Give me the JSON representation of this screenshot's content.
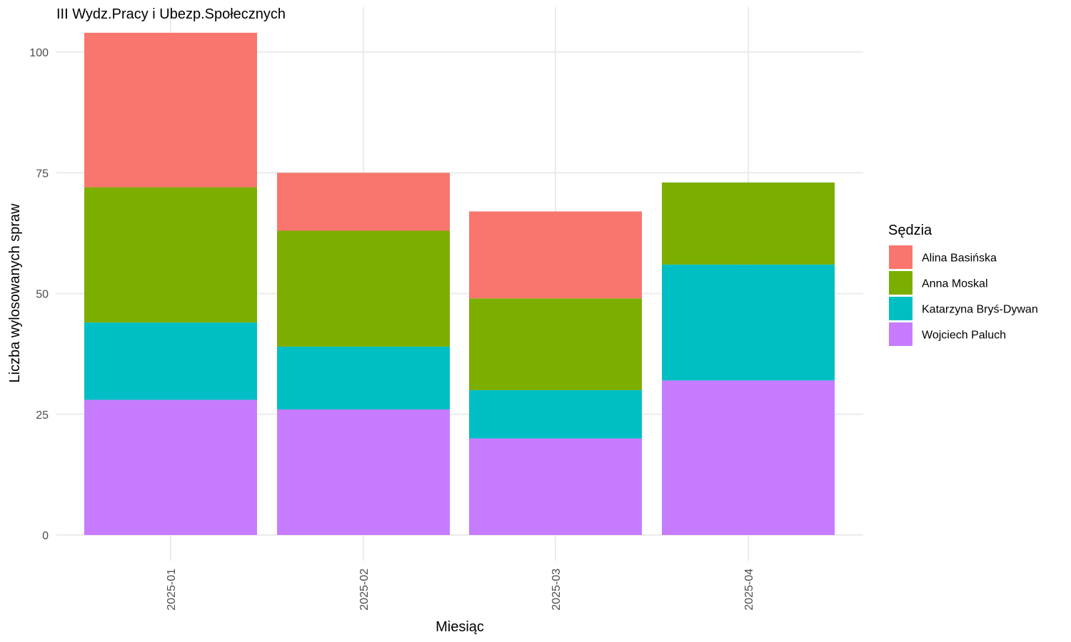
{
  "chart_data": {
    "type": "bar",
    "stacked": true,
    "title": "III Wydz.Pracy i Ubezp.Społecznych",
    "xlabel": "Miesiąc",
    "ylabel": "Liczba wylosowanych spraw",
    "categories": [
      "2025-01",
      "2025-02",
      "2025-03",
      "2025-04"
    ],
    "ylim": [
      0,
      104
    ],
    "yticks": [
      0,
      25,
      50,
      75,
      100
    ],
    "grid": true,
    "legend": {
      "title": "Sędzia",
      "position": "right"
    },
    "series": [
      {
        "name": "Alina Basińska",
        "color": "#F8766D",
        "values": [
          32,
          12,
          18,
          0
        ]
      },
      {
        "name": "Anna Moskal",
        "color": "#7CAE00",
        "values": [
          28,
          24,
          19,
          17
        ]
      },
      {
        "name": "Katarzyna Bryś-Dywan",
        "color": "#00BFC4",
        "values": [
          16,
          13,
          10,
          24
        ]
      },
      {
        "name": "Wojciech Paluch",
        "color": "#C77CFF",
        "values": [
          28,
          26,
          20,
          32
        ]
      }
    ],
    "stack_order_bottom_to_top": [
      "Wojciech Paluch",
      "Katarzyna Bryś-Dywan",
      "Anna Moskal",
      "Alina Basińska"
    ]
  }
}
